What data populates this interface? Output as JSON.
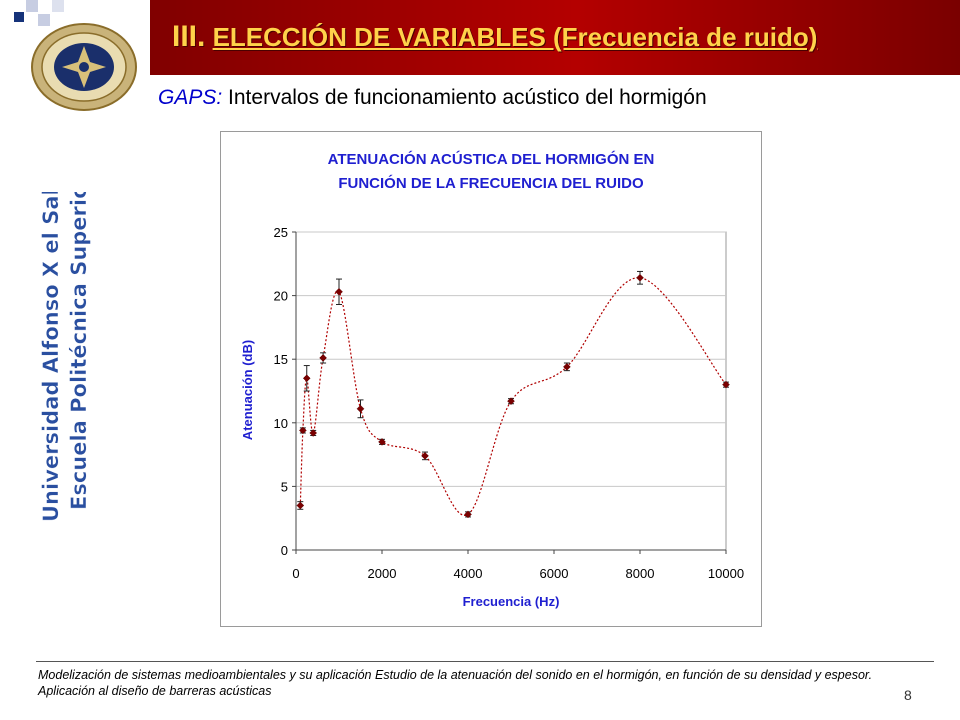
{
  "slide": {
    "title_prefix": "III.",
    "title_main": "ELECCIÓN DE VARIABLES (Frecuencia de ruido)",
    "subtitle_em": "GAPS:",
    "subtitle_rest": "Intervalos de funcionamiento acústico del hormigón",
    "vertical_line1": "Universidad Alfonso X el Sabio",
    "vertical_line2": "Escuela Politécnica Superior",
    "footer": "Modelización de sistemas medioambientales y su aplicación Estudio de la atenuación del sonido en el hormigón, en función de su densidad y espesor. Aplicación al diseño de barreras acústicas",
    "page_number": "8",
    "logo_icon": "university-seal-icon"
  },
  "colors": {
    "band": "#9b0000",
    "title_text": "#ffd24a",
    "chart_title": "#1f1fd0",
    "axis_label": "#1f1fd0",
    "series": "#7a0000",
    "vertical_text": "#2a4fa0"
  },
  "chart_data": {
    "type": "scatter",
    "title_line1": "ATENUACIÓN ACÚSTICA DEL HORMIGÓN EN",
    "title_line2": "FUNCIÓN DE LA FRECUENCIA DEL RUIDO",
    "xlabel": "Frecuencia (Hz)",
    "ylabel": "Atenuación (dB)",
    "xlim": [
      0,
      10000
    ],
    "ylim": [
      0,
      25
    ],
    "xticks": [
      0,
      2000,
      4000,
      6000,
      8000,
      10000
    ],
    "yticks": [
      0,
      5,
      10,
      15,
      20,
      25
    ],
    "grid": "horizontal",
    "legend": "none",
    "smoothed_line": "dotted",
    "points": [
      {
        "x": 100,
        "y": 3.5,
        "err": 0.3
      },
      {
        "x": 160,
        "y": 9.4,
        "err": 0.2
      },
      {
        "x": 250,
        "y": 13.5,
        "err": 1.0
      },
      {
        "x": 400,
        "y": 9.2,
        "err": 0.2
      },
      {
        "x": 630,
        "y": 15.1,
        "err": 0.4
      },
      {
        "x": 1000,
        "y": 20.3,
        "err": 1.0
      },
      {
        "x": 1500,
        "y": 11.1,
        "err": 0.7
      },
      {
        "x": 2000,
        "y": 8.5,
        "err": 0.2
      },
      {
        "x": 3000,
        "y": 7.4,
        "err": 0.3
      },
      {
        "x": 4000,
        "y": 2.8,
        "err": 0.2
      },
      {
        "x": 5000,
        "y": 11.7,
        "err": 0.2
      },
      {
        "x": 6300,
        "y": 14.4,
        "err": 0.3
      },
      {
        "x": 8000,
        "y": 21.4,
        "err": 0.5
      },
      {
        "x": 10000,
        "y": 13.0,
        "err": 0.2
      }
    ]
  }
}
